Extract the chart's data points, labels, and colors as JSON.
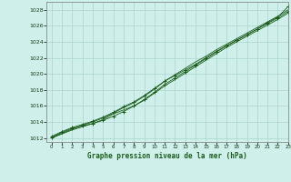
{
  "title": "Graphe pression niveau de la mer (hPa)",
  "bg_color": "#cff0ea",
  "grid_color": "#aad4cc",
  "line_color": "#1a5c1a",
  "xlim": [
    -0.5,
    23
  ],
  "ylim": [
    1011.5,
    1029.0
  ],
  "xticks": [
    0,
    1,
    2,
    3,
    4,
    5,
    6,
    7,
    8,
    9,
    10,
    11,
    12,
    13,
    14,
    15,
    16,
    17,
    18,
    19,
    20,
    21,
    22,
    23
  ],
  "yticks": [
    1012,
    1014,
    1016,
    1018,
    1020,
    1022,
    1024,
    1026,
    1028
  ],
  "hours": [
    0,
    1,
    2,
    3,
    4,
    5,
    6,
    7,
    8,
    9,
    10,
    11,
    12,
    13,
    14,
    15,
    16,
    17,
    18,
    19,
    20,
    21,
    22,
    23
  ],
  "line1": [
    1012.1,
    1012.7,
    1013.2,
    1013.5,
    1013.8,
    1014.2,
    1014.7,
    1015.3,
    1016.0,
    1016.8,
    1017.7,
    1018.7,
    1019.5,
    1020.3,
    1021.1,
    1021.9,
    1022.7,
    1023.5,
    1024.2,
    1024.9,
    1025.6,
    1026.4,
    1027.1,
    1028.4
  ],
  "line2": [
    1012.0,
    1012.6,
    1013.1,
    1013.6,
    1014.0,
    1014.5,
    1015.1,
    1015.8,
    1016.4,
    1017.2,
    1018.1,
    1019.1,
    1019.9,
    1020.7,
    1021.5,
    1022.2,
    1023.0,
    1023.7,
    1024.4,
    1025.1,
    1025.8,
    1026.5,
    1027.2,
    1028.0
  ],
  "line3": [
    1012.2,
    1012.8,
    1013.3,
    1013.7,
    1014.1,
    1014.6,
    1015.2,
    1015.9,
    1016.5,
    1017.3,
    1018.2,
    1019.1,
    1019.8,
    1020.5,
    1021.2,
    1022.0,
    1022.8,
    1023.5,
    1024.2,
    1024.9,
    1025.6,
    1026.3,
    1027.0,
    1027.8
  ],
  "line4": [
    1012.0,
    1012.5,
    1013.0,
    1013.4,
    1013.8,
    1014.3,
    1015.0,
    1015.5,
    1016.0,
    1016.7,
    1017.6,
    1018.5,
    1019.3,
    1020.1,
    1020.9,
    1021.7,
    1022.5,
    1023.3,
    1024.0,
    1024.7,
    1025.4,
    1026.1,
    1026.8,
    1027.6
  ]
}
